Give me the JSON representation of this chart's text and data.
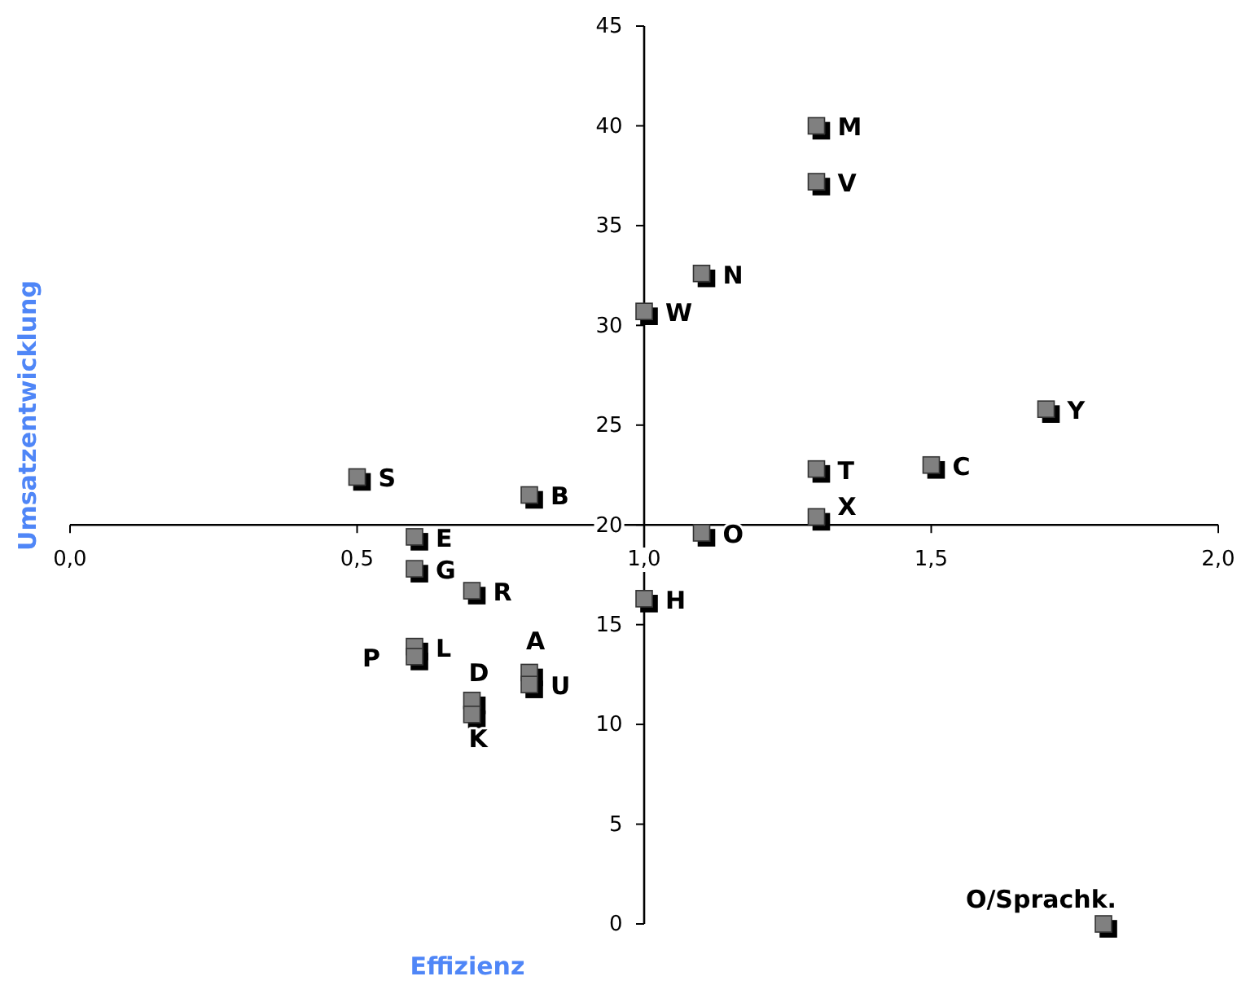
{
  "chart_data": {
    "type": "scatter",
    "xlabel": "Effizienz",
    "ylabel": "Umsatzentwicklung",
    "marker": "square",
    "grid": false,
    "xlim": [
      0,
      2
    ],
    "ylim": [
      0,
      45
    ],
    "xticks": [
      {
        "value": 0,
        "label": "0,0"
      },
      {
        "value": 0.5,
        "label": "0,5"
      },
      {
        "value": 1,
        "label": "1,0"
      },
      {
        "value": 1.5,
        "label": "1,5"
      },
      {
        "value": 2,
        "label": "2,0"
      }
    ],
    "yticks": [
      0,
      5,
      10,
      15,
      20,
      25,
      30,
      35,
      40,
      45
    ],
    "series": [
      {
        "color": "#808080",
        "x": [
          1.3,
          1.3,
          1.1,
          1.0,
          1.7,
          1.3,
          1.5,
          1.3,
          0.5,
          0.8,
          0.6,
          1.1,
          0.6,
          0.7,
          1.0,
          0.6,
          0.6,
          0.8,
          0.8,
          0.7,
          0.7,
          1.8
        ],
        "values": [
          40,
          37.2,
          32.6,
          30.7,
          25.8,
          22.8,
          23,
          20.4,
          22.4,
          21.5,
          19.4,
          19.6,
          17.8,
          16.7,
          16.3,
          13.9,
          13.4,
          12.6,
          12,
          11.2,
          10.5,
          0
        ]
      }
    ],
    "annotations": [
      {
        "text": "M",
        "x": 1.3,
        "y": 40
      },
      {
        "text": "V",
        "x": 1.3,
        "y": 37.2
      },
      {
        "text": "N",
        "x": 1.1,
        "y": 32.6
      },
      {
        "text": "W",
        "x": 1.0,
        "y": 30.7
      },
      {
        "text": "Y",
        "x": 1.7,
        "y": 25.8
      },
      {
        "text": "T",
        "x": 1.3,
        "y": 22.8
      },
      {
        "text": "C",
        "x": 1.5,
        "y": 23
      },
      {
        "text": "X",
        "x": 1.3,
        "y": 20.4
      },
      {
        "text": "S",
        "x": 0.5,
        "y": 22.4
      },
      {
        "text": "B",
        "x": 0.8,
        "y": 21.5
      },
      {
        "text": "E",
        "x": 0.6,
        "y": 19.4
      },
      {
        "text": "O",
        "x": 1.1,
        "y": 19.6
      },
      {
        "text": "G",
        "x": 0.6,
        "y": 17.8
      },
      {
        "text": "R",
        "x": 0.7,
        "y": 16.7
      },
      {
        "text": "H",
        "x": 1.0,
        "y": 16.3
      },
      {
        "text": "L",
        "x": 0.6,
        "y": 13.9
      },
      {
        "text": "P",
        "x": 0.6,
        "y": 13.4
      },
      {
        "text": "A",
        "x": 0.8,
        "y": 12.6
      },
      {
        "text": "U",
        "x": 0.8,
        "y": 12
      },
      {
        "text": "D",
        "x": 0.7,
        "y": 11.2
      },
      {
        "text": "K",
        "x": 0.7,
        "y": 10.5
      },
      {
        "text": "O/Sprachk.",
        "x": 1.8,
        "y": 0
      }
    ]
  }
}
